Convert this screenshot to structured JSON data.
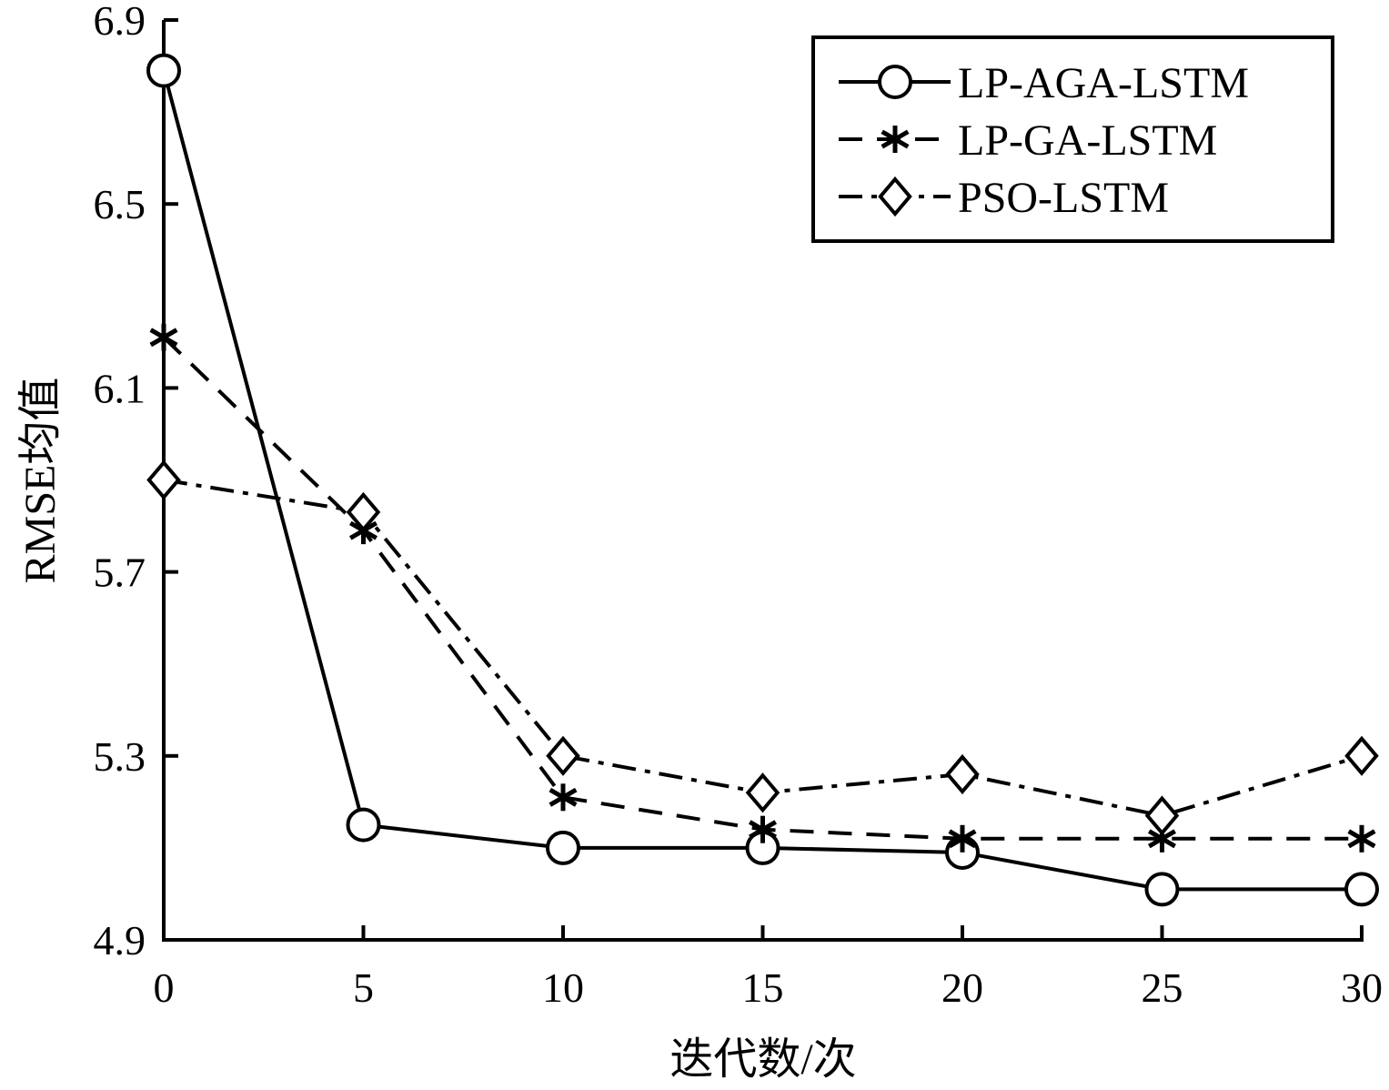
{
  "chart_data": {
    "type": "line",
    "title": "",
    "xlabel": "迭代数/次",
    "ylabel": "RMSE均值",
    "xlim": [
      0,
      30
    ],
    "ylim": [
      4.9,
      6.9
    ],
    "xticks": [
      0,
      5,
      10,
      15,
      20,
      25,
      30
    ],
    "xtick_labels": [
      "0",
      "5",
      "10",
      "15",
      "20",
      "25",
      "30"
    ],
    "yticks": [
      4.9,
      5.3,
      5.7,
      6.1,
      6.5,
      6.9
    ],
    "ytick_labels": [
      "4.9",
      "5.3",
      "5.7",
      "6.1",
      "6.5",
      "6.9"
    ],
    "grid": false,
    "legend_position": "top-right",
    "x": [
      0,
      5,
      10,
      15,
      20,
      25,
      30
    ],
    "series": [
      {
        "name": "LP-AGA-LSTM",
        "values": [
          6.79,
          5.15,
          5.1,
          5.1,
          5.09,
          5.01,
          5.01
        ],
        "line_style": "solid",
        "marker": "circle",
        "color": "#000000"
      },
      {
        "name": "LP-GA-LSTM",
        "values": [
          6.21,
          5.79,
          5.21,
          5.14,
          5.12,
          5.12,
          5.12
        ],
        "line_style": "dashed",
        "marker": "asterisk",
        "color": "#000000"
      },
      {
        "name": "PSO-LSTM",
        "values": [
          5.9,
          5.83,
          5.3,
          5.22,
          5.26,
          5.17,
          5.3
        ],
        "line_style": "dashdot",
        "marker": "diamond",
        "color": "#000000"
      }
    ]
  }
}
